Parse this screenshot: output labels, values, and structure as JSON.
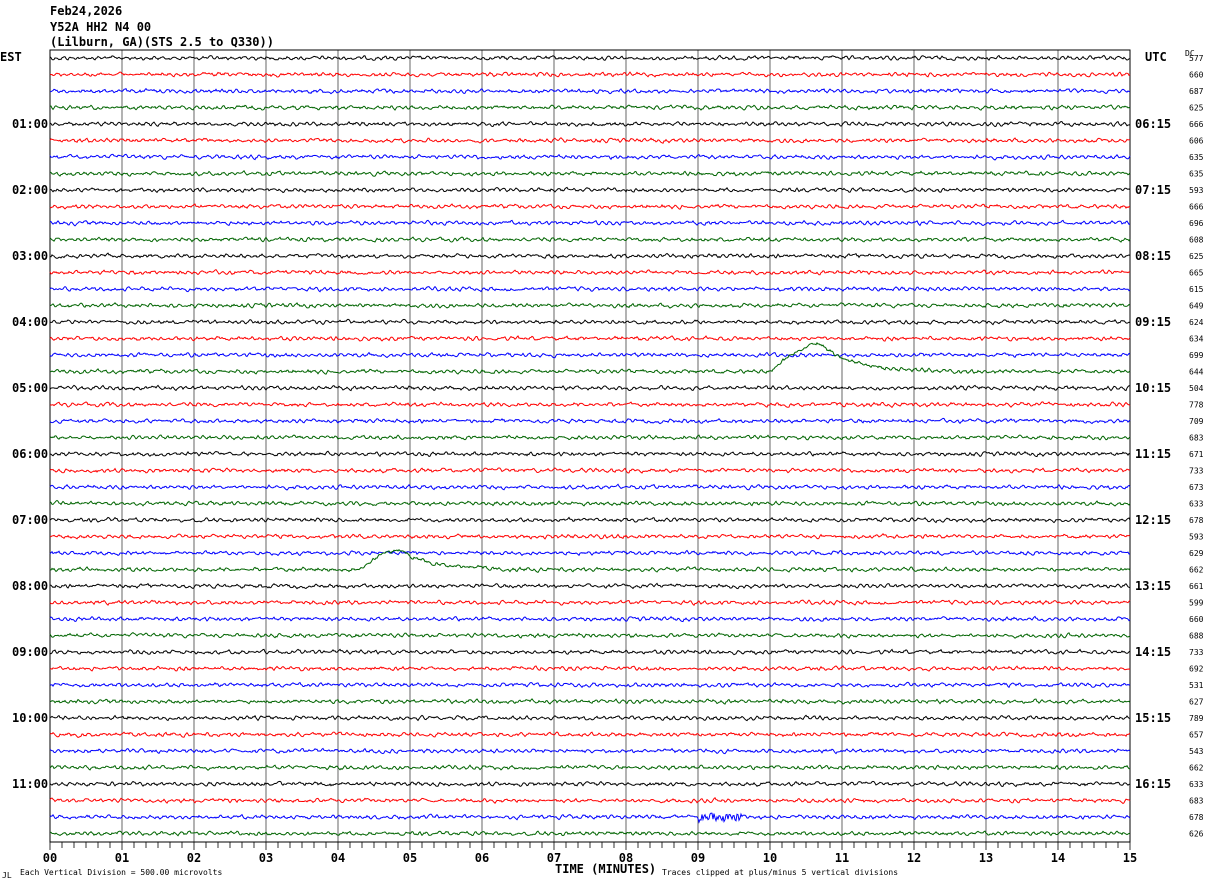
{
  "header": {
    "date": "Feb24,2026",
    "station": "Y52A HH2 N4 00",
    "location": "(Lilburn, GA)(STS 2.5 to Q330))"
  },
  "chart_data": {
    "type": "line",
    "title": "Y52A HH2 N4 00 helicorder Feb24,2026",
    "xlabel": "TIME (MINUTES)",
    "xlim": [
      0,
      15
    ],
    "x_ticks": [
      "00",
      "01",
      "02",
      "03",
      "04",
      "05",
      "06",
      "07",
      "08",
      "09",
      "10",
      "11",
      "12",
      "13",
      "14",
      "15"
    ],
    "left_axis_label": "EST",
    "right_axis_label": "UTC",
    "dc_label": "DC",
    "est_labels": [
      "01:00",
      "02:00",
      "03:00",
      "04:00",
      "05:00",
      "06:00",
      "07:00",
      "08:00",
      "09:00",
      "10:00",
      "11:00"
    ],
    "utc_labels": [
      "06:15",
      "07:15",
      "08:15",
      "09:15",
      "10:15",
      "11:15",
      "12:15",
      "13:15",
      "14:15",
      "15:15",
      "16:15"
    ],
    "trace_colors": [
      "#000000",
      "#ff0000",
      "#0000ff",
      "#006400"
    ],
    "dc_values": [
      "577",
      "660",
      "687",
      "625",
      "666",
      "606",
      "635",
      "635",
      "593",
      "666",
      "696",
      "608",
      "625",
      "665",
      "615",
      "649",
      "624",
      "634",
      "699",
      "644",
      "504",
      "778",
      "709",
      "683",
      "671",
      "733",
      "673",
      "633",
      "678",
      "593",
      "629",
      "662",
      "661",
      "599",
      "660",
      "688",
      "733",
      "692",
      "531",
      "627",
      "789",
      "657",
      "543",
      "662",
      "633",
      "683",
      "678",
      "626"
    ],
    "events": [
      {
        "trace": 19,
        "start_min": 10.0,
        "peak_min": 10.7,
        "end_min": 12.5,
        "amplitude_div": 1.7
      },
      {
        "trace": 31,
        "start_min": 4.3,
        "peak_min": 4.85,
        "end_min": 6.2,
        "amplitude_div": 1.2
      },
      {
        "trace": 46,
        "start_min": 9.0,
        "peak_min": 9.3,
        "end_min": 9.6,
        "amplitude_div": 0.4,
        "burst": true
      }
    ],
    "scale_note": "Each Vertical Division =  500.00 microvolts",
    "clip_note": "Traces clipped at plus/minus 5 vertical divisions",
    "grid": true
  },
  "corner_mark": "JL"
}
